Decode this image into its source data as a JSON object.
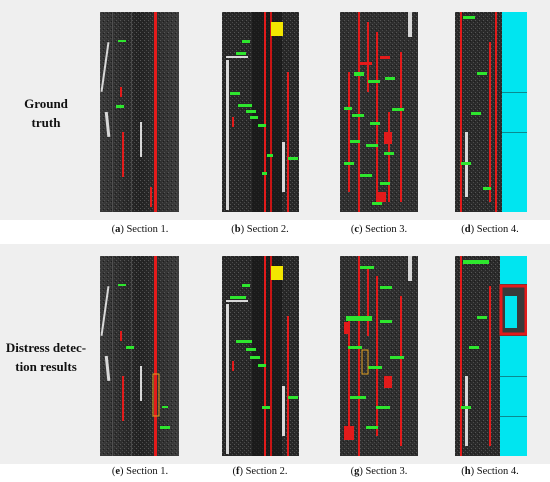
{
  "rows": [
    {
      "label_lines": [
        "Ground",
        "truth"
      ],
      "captions": [
        {
          "letter": "a",
          "text": "Section 1."
        },
        {
          "letter": "b",
          "text": "Section 2."
        },
        {
          "letter": "c",
          "text": "Section 3."
        },
        {
          "letter": "d",
          "text": "Section 4."
        }
      ]
    },
    {
      "label_lines": [
        "Distress detec-",
        "tion results"
      ],
      "captions": [
        {
          "letter": "e",
          "text": "Section 1."
        },
        {
          "letter": "f",
          "text": "Section 2."
        },
        {
          "letter": "g",
          "text": "Section 3."
        },
        {
          "letter": "h",
          "text": "Section 4."
        }
      ]
    }
  ],
  "colors": {
    "panel_background": "#efefef",
    "pavement_dark": "#2b2b2b",
    "crack_red": "#e31b1b",
    "crack_green": "#2ee62e",
    "marking_white": "#d8d8d8",
    "patch_yellow": "#f2e600",
    "repair_cyan": "#00e5f0",
    "box_orange": "#e0a020"
  }
}
